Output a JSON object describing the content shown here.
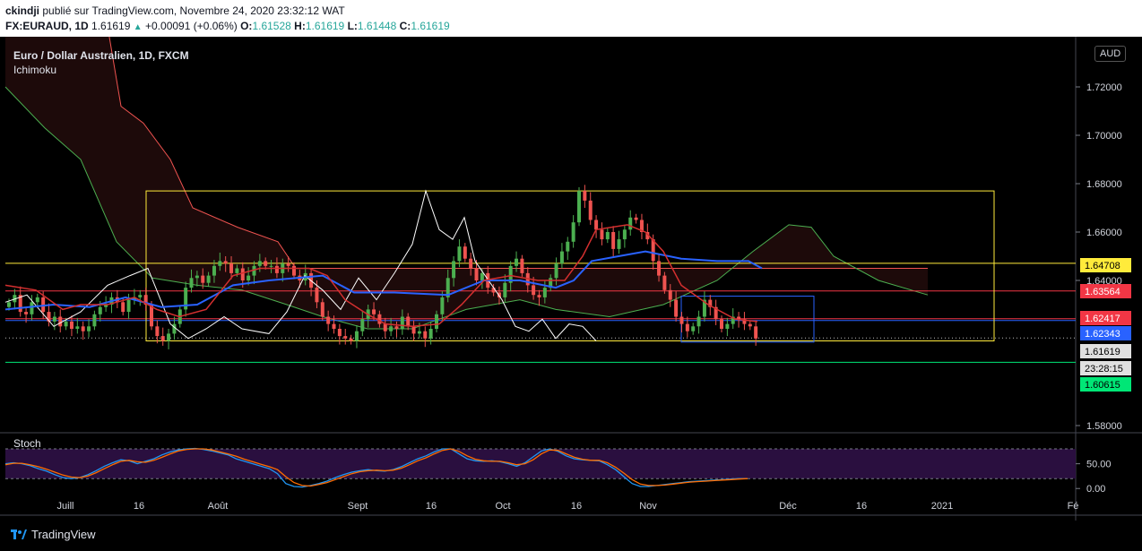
{
  "header": {
    "author": "ckindji",
    "published": "publié sur TradingView.com, Novembre 24, 2020 23:32:12 WAT",
    "symbol": "FX:EURAUD, 1D",
    "last": "1.61619",
    "change": "+0.00091 (+0.06%)",
    "o_label": "O:",
    "o": "1.61528",
    "h_label": "H:",
    "h": "1.61619",
    "l_label": "L:",
    "l": "1.61448",
    "c_label": "C:",
    "c": "1.61619"
  },
  "legend": {
    "title": "Euro / Dollar Australien, 1D, FXCM",
    "indicator": "Ichimoku"
  },
  "stoch_label": "Stoch",
  "currency_label": "AUD",
  "brand": "TradingView",
  "colors": {
    "bg": "#000000",
    "up": "#26a69a",
    "candle_up": "#4caf50",
    "candle_down": "#ef5350",
    "tenkan": "#d32f2f",
    "kijun": "#2962ff",
    "chikou": "#ffffff",
    "span_a": "#4caf50",
    "span_b": "#ef5350",
    "yellow": "#ffeb3b",
    "green_line": "#43a047",
    "stoch_k": "#2196f3",
    "stoch_d": "#ff6d00",
    "stoch_bg": "#2a0f3f"
  },
  "chart_data": [
    {
      "type": "candlestick",
      "title": "Euro / Dollar Australien, 1D, FXCM",
      "ylim": [
        1.565,
        1.745
      ],
      "y_ticks": [
        "1.72000",
        "1.70000",
        "1.68000",
        "1.66000",
        "1.64000",
        "1.58000"
      ],
      "x_ticks": [
        "Juill",
        "16",
        "Août",
        "Sept",
        "16",
        "Oct",
        "16",
        "Nov",
        "Déc",
        "16",
        "2021",
        "Fé"
      ],
      "price_labels": [
        {
          "value": "1.64708",
          "color": "#ffeb3b",
          "text_color": "#000000"
        },
        {
          "value": "1.63564",
          "color": "#f23645",
          "text_color": "#ffffff"
        },
        {
          "value": "1.62417",
          "color": "#f23645",
          "text_color": "#ffffff"
        },
        {
          "value": "1.62343",
          "color": "#2962ff",
          "text_color": "#ffffff"
        },
        {
          "value": "1.61619",
          "color": "#e0e0e0",
          "text_color": "#000000"
        },
        {
          "value": "23:28:15",
          "color": "#e0e0e0",
          "text_color": "#000000"
        },
        {
          "value": "1.60615",
          "color": "#00e676",
          "text_color": "#000000"
        }
      ],
      "horizontal_levels": [
        {
          "value": 1.64708,
          "color": "#ffeb3b"
        },
        {
          "value": 1.63564,
          "color": "#f23645"
        },
        {
          "value": 1.62417,
          "color": "#f23645"
        },
        {
          "value": 1.62343,
          "color": "#2962ff"
        },
        {
          "value": 1.60615,
          "color": "#00e676"
        }
      ],
      "range_box": {
        "top": 1.677,
        "bottom": 1.615,
        "color": "#ffeb3b"
      },
      "closes": [
        1.631,
        1.634,
        1.627,
        1.626,
        1.631,
        1.633,
        1.627,
        1.623,
        1.625,
        1.621,
        1.623,
        1.62,
        1.621,
        1.619,
        1.621,
        1.626,
        1.629,
        1.63,
        1.633,
        1.631,
        1.627,
        1.632,
        1.633,
        1.634,
        1.63,
        1.621,
        1.617,
        1.615,
        1.618,
        1.622,
        1.628,
        1.637,
        1.641,
        1.642,
        1.639,
        1.642,
        1.646,
        1.648,
        1.647,
        1.643,
        1.645,
        1.64,
        1.642,
        1.646,
        1.648,
        1.646,
        1.646,
        1.643,
        1.647,
        1.646,
        1.642,
        1.64,
        1.643,
        1.637,
        1.631,
        1.625,
        1.622,
        1.62,
        1.617,
        1.616,
        1.615,
        1.619,
        1.624,
        1.628,
        1.626,
        1.622,
        1.619,
        1.621,
        1.62,
        1.625,
        1.621,
        1.618,
        1.619,
        1.616,
        1.62,
        1.626,
        1.633,
        1.641,
        1.648,
        1.654,
        1.649,
        1.645,
        1.64,
        1.643,
        1.637,
        1.635,
        1.633,
        1.639,
        1.646,
        1.649,
        1.643,
        1.638,
        1.634,
        1.633,
        1.637,
        1.641,
        1.647,
        1.652,
        1.656,
        1.664,
        1.677,
        1.673,
        1.665,
        1.661,
        1.657,
        1.66,
        1.653,
        1.657,
        1.661,
        1.666,
        1.665,
        1.66,
        1.657,
        1.648,
        1.642,
        1.636,
        1.632,
        1.625,
        1.622,
        1.619,
        1.621,
        1.625,
        1.632,
        1.629,
        1.624,
        1.62,
        1.622,
        1.625,
        1.624,
        1.622,
        1.621,
        1.616
      ],
      "tenkan_points": [
        [
          6,
          1.638
        ],
        [
          40,
          1.636
        ],
        [
          70,
          1.628
        ],
        [
          90,
          1.63
        ],
        [
          120,
          1.63
        ],
        [
          150,
          1.633
        ],
        [
          175,
          1.628
        ],
        [
          200,
          1.625
        ],
        [
          230,
          1.628
        ],
        [
          260,
          1.642
        ],
        [
          290,
          1.645
        ],
        [
          320,
          1.645
        ],
        [
          345,
          1.645
        ],
        [
          365,
          1.642
        ],
        [
          385,
          1.632
        ],
        [
          410,
          1.626
        ],
        [
          430,
          1.622
        ],
        [
          460,
          1.621
        ],
        [
          490,
          1.622
        ],
        [
          515,
          1.63
        ],
        [
          540,
          1.64
        ],
        [
          570,
          1.642
        ],
        [
          600,
          1.64
        ],
        [
          630,
          1.64
        ],
        [
          650,
          1.65
        ],
        [
          665,
          1.661
        ],
        [
          700,
          1.663
        ],
        [
          720,
          1.66
        ],
        [
          740,
          1.652
        ],
        [
          760,
          1.638
        ],
        [
          790,
          1.63
        ],
        [
          820,
          1.624
        ],
        [
          845,
          1.623
        ]
      ],
      "kijun_points": [
        [
          6,
          1.628
        ],
        [
          60,
          1.63
        ],
        [
          100,
          1.629
        ],
        [
          140,
          1.633
        ],
        [
          180,
          1.629
        ],
        [
          220,
          1.63
        ],
        [
          260,
          1.638
        ],
        [
          300,
          1.64
        ],
        [
          360,
          1.642
        ],
        [
          395,
          1.635
        ],
        [
          440,
          1.635
        ],
        [
          500,
          1.634
        ],
        [
          540,
          1.64
        ],
        [
          580,
          1.64
        ],
        [
          620,
          1.637
        ],
        [
          640,
          1.64
        ],
        [
          660,
          1.648
        ],
        [
          690,
          1.65
        ],
        [
          720,
          1.652
        ],
        [
          760,
          1.649
        ],
        [
          800,
          1.648
        ],
        [
          835,
          1.648
        ],
        [
          850,
          1.645
        ]
      ],
      "chikou_points": [
        [
          6,
          1.631
        ],
        [
          30,
          1.634
        ],
        [
          60,
          1.621
        ],
        [
          90,
          1.627
        ],
        [
          120,
          1.638
        ],
        [
          145,
          1.642
        ],
        [
          165,
          1.645
        ],
        [
          190,
          1.622
        ],
        [
          210,
          1.616
        ],
        [
          230,
          1.62
        ],
        [
          250,
          1.625
        ],
        [
          270,
          1.62
        ],
        [
          300,
          1.618
        ],
        [
          320,
          1.627
        ],
        [
          340,
          1.642
        ],
        [
          360,
          1.636
        ],
        [
          380,
          1.628
        ],
        [
          400,
          1.641
        ],
        [
          420,
          1.632
        ],
        [
          440,
          1.643
        ],
        [
          460,
          1.655
        ],
        [
          475,
          1.677
        ],
        [
          490,
          1.661
        ],
        [
          505,
          1.657
        ],
        [
          518,
          1.666
        ],
        [
          530,
          1.648
        ],
        [
          545,
          1.64
        ],
        [
          560,
          1.632
        ],
        [
          575,
          1.621
        ],
        [
          590,
          1.619
        ],
        [
          605,
          1.624
        ],
        [
          620,
          1.616
        ],
        [
          635,
          1.622
        ],
        [
          650,
          1.621
        ],
        [
          665,
          1.615
        ]
      ],
      "span_a_points": [
        [
          6,
          1.72
        ],
        [
          50,
          1.703
        ],
        [
          90,
          1.69
        ],
        [
          130,
          1.656
        ],
        [
          170,
          1.641
        ],
        [
          220,
          1.638
        ],
        [
          270,
          1.636
        ],
        [
          320,
          1.63
        ],
        [
          360,
          1.625
        ],
        [
          410,
          1.62
        ],
        [
          460,
          1.62
        ],
        [
          520,
          1.628
        ],
        [
          580,
          1.632
        ],
        [
          620,
          1.628
        ],
        [
          680,
          1.625
        ],
        [
          740,
          1.63
        ],
        [
          800,
          1.64
        ],
        [
          840,
          1.652
        ],
        [
          880,
          1.663
        ],
        [
          905,
          1.662
        ],
        [
          930,
          1.65
        ],
        [
          980,
          1.64
        ],
        [
          1035,
          1.634
        ]
      ],
      "span_b_points": [
        [
          6,
          1.745
        ],
        [
          120,
          1.745
        ],
        [
          135,
          1.712
        ],
        [
          160,
          1.705
        ],
        [
          190,
          1.69
        ],
        [
          215,
          1.67
        ],
        [
          265,
          1.662
        ],
        [
          310,
          1.656
        ],
        [
          330,
          1.645
        ],
        [
          370,
          1.645
        ],
        [
          420,
          1.645
        ],
        [
          480,
          1.645
        ],
        [
          600,
          1.645
        ],
        [
          700,
          1.645
        ],
        [
          800,
          1.645
        ],
        [
          860,
          1.645
        ],
        [
          940,
          1.645
        ],
        [
          1000,
          1.645
        ],
        [
          1035,
          1.645
        ]
      ],
      "blue_box": {
        "x_from": 760,
        "x_to": 908,
        "top": 1.6335,
        "bottom": 1.6145
      }
    },
    {
      "type": "line",
      "title": "Stoch",
      "ylim": [
        -5,
        100
      ],
      "y_ticks": [
        "50.00",
        "0.00"
      ],
      "levels": [
        80,
        20
      ],
      "series": [
        {
          "name": "%K",
          "values": [
            50,
            52,
            50,
            46,
            40,
            35,
            28,
            22,
            20,
            22,
            28,
            36,
            45,
            52,
            58,
            56,
            50,
            55,
            60,
            68,
            74,
            78,
            80,
            81,
            79,
            76,
            72,
            68,
            60,
            55,
            50,
            45,
            40,
            30,
            10,
            4,
            3,
            6,
            10,
            15,
            22,
            28,
            33,
            36,
            38,
            36,
            35,
            38,
            44,
            52,
            60,
            66,
            74,
            80,
            80,
            70,
            60,
            56,
            55,
            56,
            54,
            50,
            45,
            52,
            64,
            76,
            80,
            75,
            66,
            60,
            58,
            57,
            56,
            48,
            38,
            24,
            10,
            4,
            4,
            6,
            8,
            10,
            12,
            14,
            15,
            16,
            17,
            18,
            19,
            20,
            20
          ]
        },
        {
          "name": "%D",
          "values": [
            48,
            51,
            51,
            48,
            44,
            39,
            33,
            27,
            23,
            22,
            25,
            32,
            40,
            48,
            55,
            57,
            54,
            53,
            57,
            63,
            70,
            76,
            79,
            80,
            80,
            78,
            74,
            70,
            65,
            59,
            54,
            49,
            44,
            38,
            24,
            12,
            6,
            5,
            8,
            12,
            18,
            24,
            30,
            34,
            36,
            37,
            36,
            37,
            41,
            48,
            56,
            62,
            70,
            77,
            80,
            75,
            66,
            59,
            56,
            55,
            55,
            52,
            48,
            50,
            58,
            70,
            78,
            77,
            70,
            63,
            59,
            57,
            57,
            52,
            43,
            31,
            18,
            9,
            6,
            6,
            7,
            9,
            11,
            13,
            14,
            15,
            16,
            17,
            18,
            19,
            20
          ]
        }
      ]
    }
  ]
}
